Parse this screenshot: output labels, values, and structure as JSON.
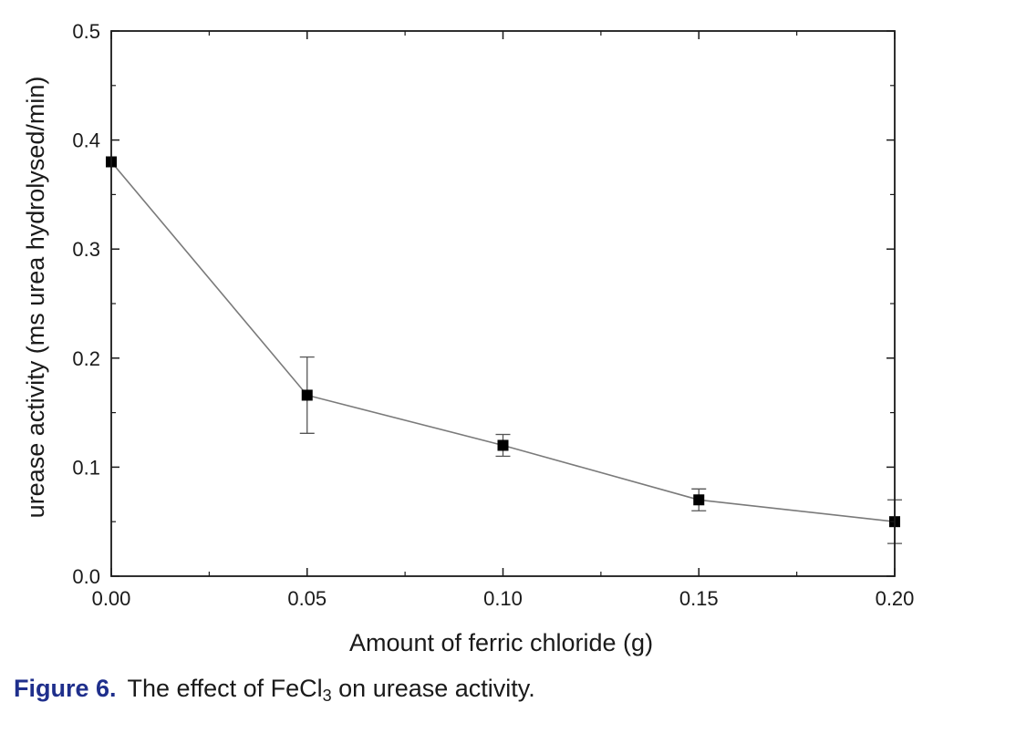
{
  "chart_data": {
    "type": "line",
    "xlabel": "Amount of ferric chloride (g)",
    "ylabel": "urease activity (ms urea hydrolysed/min)",
    "xlim": [
      0.0,
      0.2
    ],
    "ylim": [
      0.0,
      0.5
    ],
    "x_ticks": [
      "0.00",
      "0.05",
      "0.10",
      "0.15",
      "0.20"
    ],
    "y_ticks": [
      "0.0",
      "0.1",
      "0.2",
      "0.3",
      "0.4",
      "0.5"
    ],
    "grid": false,
    "marker": "square",
    "series": [
      {
        "x": [
          0.0,
          0.05,
          0.1,
          0.15,
          0.2
        ],
        "y": [
          0.38,
          0.166,
          0.12,
          0.07,
          0.05
        ],
        "error": [
          0.0,
          0.035,
          0.01,
          0.01,
          0.02
        ]
      }
    ],
    "colors": {
      "line": "#7a7a7a",
      "marker": "#000000",
      "axis": "#1a1a1a"
    }
  },
  "caption": {
    "label": "Figure 6.",
    "text_before": "The effect of FeCl",
    "subscript": "3",
    "text_after": " on urease activity.",
    "label_color": "#1f2f8c"
  }
}
